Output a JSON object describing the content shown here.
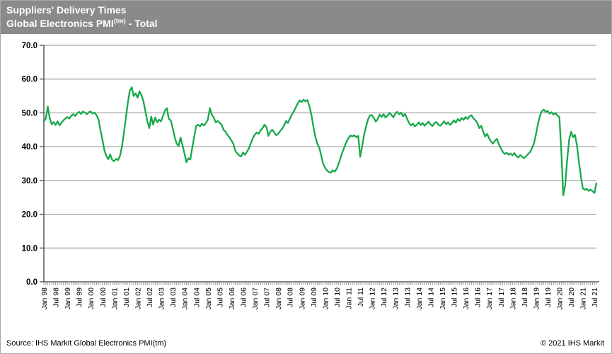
{
  "header": {
    "title_line1": "Suppliers' Delivery Times",
    "title_line2_prefix": "Global Electronics PMI",
    "title_line2_sup": "(tm)",
    "title_line2_suffix": " - Total"
  },
  "footer": {
    "source": "Source: IHS Markit Global Electronics PMI(tm)",
    "copyright": "© 2021  IHS Markit"
  },
  "colors": {
    "header_bg": "#8a8a8a",
    "header_text": "#ffffff",
    "line": "#17a94a",
    "grid": "#8c8c8c",
    "axis": "#3f3f3f",
    "tick": "#8c8c8c",
    "label_text": "#000000"
  },
  "chart_data": {
    "type": "line",
    "title": "Suppliers' Delivery Times - Global Electronics PMI(tm) - Total",
    "xlabel": "",
    "ylabel": "",
    "ylim": [
      0,
      70
    ],
    "y_ticks": [
      0,
      10,
      20,
      30,
      40,
      50,
      60,
      70
    ],
    "y_tick_labels": [
      "0.0",
      "10.0",
      "20.0",
      "30.0",
      "40.0",
      "50.0",
      "60.0",
      "70.0"
    ],
    "grid": true,
    "legend_position": "none",
    "x_start": "Jan 1998",
    "x_end": "Aug 2021",
    "x_label_every_n_months": 6,
    "x_tick_labels": [
      "Jan 98",
      "Jul 98",
      "Jan 99",
      "Jul 99",
      "Jan 00",
      "Jul 00",
      "Jan 01",
      "Jul 01",
      "Jan 02",
      "Jul 02",
      "Jan 03",
      "Jul 03",
      "Jan 04",
      "Jul 04",
      "Jan 05",
      "Jul 05",
      "Jan 06",
      "Jul 06",
      "Jan 07",
      "Jul 07",
      "Jan 08",
      "Jul 08",
      "Jan 09",
      "Jul 09",
      "Jan 10",
      "Jul 10",
      "Jan 11",
      "Jul 11",
      "Jan 12",
      "Jul 12",
      "Jan 13",
      "Jul 13",
      "Jan 14",
      "Jul 14",
      "Jan 15",
      "Jul 15",
      "Jan 16",
      "Jul 16",
      "Jan 17",
      "Jul 17",
      "Jan 18",
      "Jul 18",
      "Jan 19",
      "Jul 19",
      "Jan 20",
      "Jul 20",
      "Jan 21",
      "Jul 21"
    ],
    "series": [
      {
        "name": "Suppliers' Delivery Times",
        "color": "#17a94a",
        "monthly_values": [
          47.5,
          48.3,
          51.9,
          48.4,
          46.6,
          47.3,
          46.4,
          47.5,
          46.3,
          47.1,
          47.8,
          48.3,
          48.8,
          48.3,
          49.1,
          49.6,
          49.1,
          49.8,
          50.3,
          49.7,
          50.4,
          50.1,
          49.6,
          50.2,
          50.4,
          49.8,
          50.1,
          49.3,
          48.0,
          44.9,
          42.0,
          38.9,
          37.2,
          36.3,
          37.7,
          36.1,
          35.7,
          36.4,
          36.0,
          37.3,
          40.0,
          44.0,
          48.5,
          53.0,
          56.5,
          57.6,
          55.0,
          55.8,
          54.5,
          56.4,
          55.2,
          53.5,
          50.5,
          47.5,
          45.5,
          48.9,
          46.5,
          48.6,
          47.2,
          48.0,
          47.5,
          49.0,
          50.7,
          51.4,
          48.2,
          47.8,
          45.5,
          42.8,
          40.9,
          40.2,
          42.7,
          40.5,
          38.0,
          35.4,
          36.6,
          36.2,
          39.6,
          43.0,
          46.1,
          46.5,
          46.0,
          46.8,
          46.3,
          47.0,
          48.0,
          51.4,
          49.5,
          48.6,
          47.2,
          47.6,
          47.1,
          46.5,
          45.0,
          44.4,
          43.5,
          42.8,
          41.9,
          40.9,
          38.8,
          38.0,
          37.4,
          37.1,
          38.3,
          37.6,
          38.5,
          39.5,
          41.0,
          42.5,
          43.5,
          44.2,
          43.8,
          44.8,
          45.5,
          46.5,
          45.8,
          43.2,
          44.5,
          45.0,
          44.2,
          43.4,
          43.8,
          44.6,
          45.3,
          46.2,
          47.6,
          47.0,
          48.3,
          49.5,
          50.4,
          51.6,
          52.8,
          53.7,
          53.2,
          53.9,
          53.4,
          53.8,
          52.0,
          49.5,
          46.1,
          43.0,
          41.0,
          39.8,
          37.5,
          35.0,
          33.8,
          32.9,
          32.5,
          32.3,
          33.0,
          32.6,
          33.5,
          35.0,
          36.8,
          38.5,
          40.0,
          41.5,
          42.5,
          43.3,
          43.0,
          43.4,
          42.8,
          43.2,
          37.0,
          40.0,
          43.5,
          46.0,
          48.0,
          49.3,
          49.3,
          48.5,
          47.4,
          48.2,
          49.5,
          48.8,
          49.6,
          48.6,
          49.2,
          50.0,
          49.4,
          48.7,
          49.8,
          50.3,
          49.6,
          50.1,
          49.0,
          49.7,
          48.3,
          47.0,
          46.3,
          46.8,
          46.0,
          46.5,
          47.2,
          46.4,
          47.0,
          46.2,
          46.8,
          47.4,
          46.6,
          46.1,
          46.9,
          47.3,
          46.5,
          46.2,
          46.8,
          47.5,
          46.7,
          47.2,
          46.4,
          47.0,
          47.8,
          47.1,
          48.2,
          47.6,
          48.5,
          47.9,
          48.8,
          48.2,
          49.0,
          49.3,
          48.4,
          47.8,
          47.0,
          45.5,
          46.2,
          44.5,
          43.0,
          43.8,
          42.5,
          41.5,
          40.9,
          41.8,
          42.3,
          40.8,
          39.6,
          38.5,
          37.8,
          38.2,
          37.6,
          38.0,
          37.4,
          38.1,
          37.2,
          36.8,
          37.5,
          37.0,
          36.6,
          37.2,
          37.8,
          38.4,
          39.5,
          41.0,
          43.5,
          46.5,
          49.0,
          50.4,
          51.0,
          50.3,
          50.6,
          49.8,
          50.2,
          49.5,
          50.0,
          49.2,
          48.8,
          39.0,
          25.6,
          28.5,
          36.0,
          42.0,
          44.4,
          42.8,
          43.5,
          40.5,
          35.5,
          31.4,
          27.7,
          27.2,
          27.5,
          26.9,
          27.3,
          26.8,
          26.3,
          29.2
        ]
      }
    ]
  }
}
